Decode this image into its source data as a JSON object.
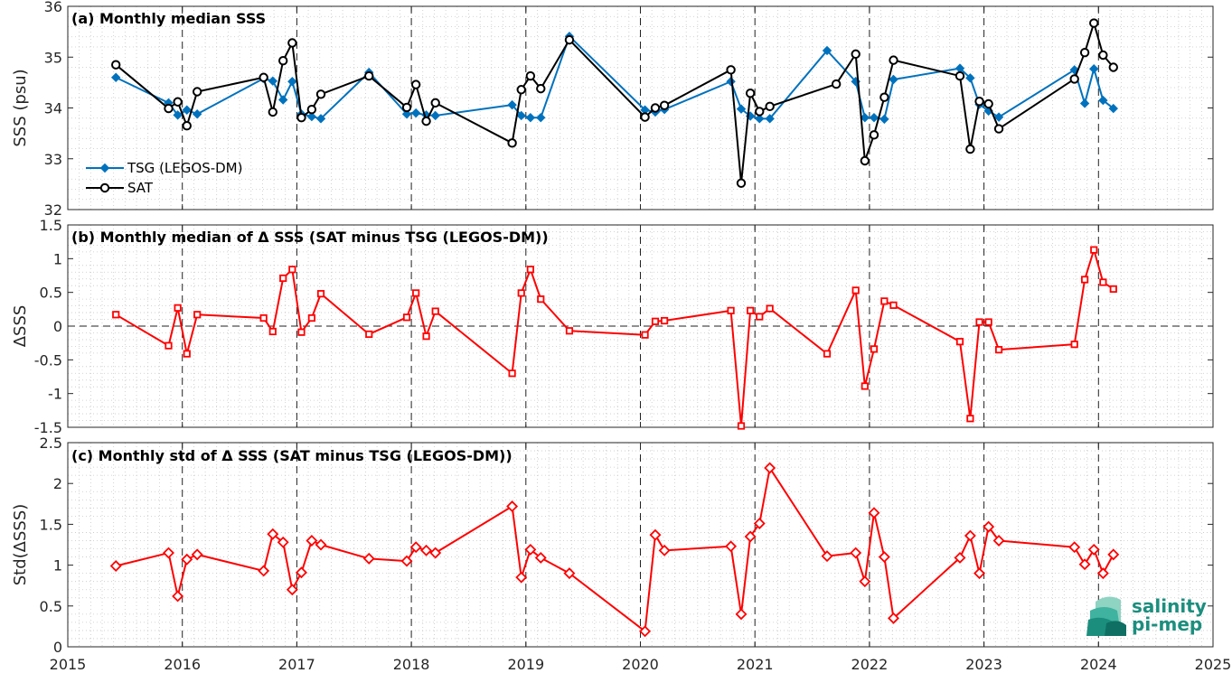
{
  "chart_data": [
    {
      "type": "line",
      "title": "(a) Monthly median SSS",
      "xlabel": "",
      "ylabel": "SSS (psu)",
      "xlim": [
        2015,
        2025
      ],
      "ylim": [
        32,
        36
      ],
      "yticks": [
        "32",
        "33",
        "34",
        "35",
        "36"
      ],
      "legend_position": "lower-left",
      "grid": "minor dotted",
      "series": [
        {
          "name": "TSG (LEGOS-DM)",
          "color": "#0072BD",
          "marker": "diamond",
          "x": [
            2015.42,
            2015.88,
            2015.96,
            2016.04,
            2016.13,
            2016.71,
            2016.79,
            2016.88,
            2016.96,
            2017.04,
            2017.13,
            2017.21,
            2017.63,
            2017.96,
            2018.04,
            2018.13,
            2018.21,
            2018.88,
            2018.96,
            2019.04,
            2019.13,
            2019.38,
            2020.04,
            2020.13,
            2020.21,
            2020.79,
            2020.88,
            2020.96,
            2021.04,
            2021.13,
            2021.63,
            2021.88,
            2021.96,
            2022.04,
            2022.13,
            2022.21,
            2022.79,
            2022.88,
            2022.96,
            2023.04,
            2023.13,
            2023.79,
            2023.88,
            2023.96,
            2024.04,
            2024.13
          ],
          "y": [
            34.6,
            34.1,
            33.86,
            33.96,
            33.88,
            34.58,
            34.53,
            34.16,
            34.52,
            33.88,
            33.83,
            33.79,
            34.7,
            33.88,
            33.9,
            33.86,
            33.85,
            34.06,
            33.85,
            33.81,
            33.81,
            35.41,
            33.96,
            33.92,
            33.97,
            34.52,
            33.98,
            33.84,
            33.79,
            33.79,
            35.13,
            34.52,
            33.81,
            33.81,
            33.78,
            34.56,
            34.78,
            34.59,
            34.07,
            33.94,
            33.82,
            34.75,
            34.09,
            34.77,
            34.15,
            33.99
          ]
        },
        {
          "name": "SAT",
          "color": "#000000",
          "marker": "circle",
          "x": [
            2015.42,
            2015.88,
            2015.96,
            2016.04,
            2016.13,
            2016.71,
            2016.79,
            2016.88,
            2016.96,
            2017.04,
            2017.13,
            2017.21,
            2017.63,
            2017.96,
            2018.04,
            2018.13,
            2018.21,
            2018.88,
            2018.96,
            2019.04,
            2019.13,
            2019.38,
            2020.04,
            2020.13,
            2020.21,
            2020.79,
            2020.88,
            2020.96,
            2021.04,
            2021.13,
            2021.71,
            2021.88,
            2021.96,
            2022.04,
            2022.13,
            2022.21,
            2022.79,
            2022.88,
            2022.96,
            2023.04,
            2023.13,
            2023.79,
            2023.88,
            2023.96,
            2024.04,
            2024.13
          ],
          "y": [
            34.85,
            33.99,
            34.12,
            33.65,
            34.32,
            34.6,
            33.92,
            34.93,
            35.28,
            33.81,
            33.97,
            34.27,
            34.63,
            34.01,
            34.46,
            33.74,
            34.1,
            33.31,
            34.36,
            34.63,
            34.38,
            35.34,
            33.82,
            34.0,
            34.05,
            34.75,
            32.52,
            34.29,
            33.93,
            34.03,
            34.47,
            35.06,
            32.96,
            33.47,
            34.21,
            34.94,
            34.63,
            33.19,
            34.13,
            34.08,
            33.59,
            34.57,
            35.09,
            35.67,
            35.04,
            34.8
          ]
        }
      ]
    },
    {
      "type": "line",
      "title": "(b) Monthly median of Δ SSS (SAT minus TSG (LEGOS-DM))",
      "xlabel": "",
      "ylabel": "ΔSSS",
      "xlim": [
        2015,
        2025
      ],
      "ylim": [
        -1.5,
        1.5
      ],
      "yticks": [
        "-1.5",
        "-1",
        "-0.5",
        "0",
        "0.5",
        "1",
        "1.5"
      ],
      "grid": "minor dotted",
      "series": [
        {
          "color": "#FF0000",
          "marker": "square",
          "x": [
            2015.42,
            2015.88,
            2015.96,
            2016.04,
            2016.13,
            2016.71,
            2016.79,
            2016.88,
            2016.96,
            2017.04,
            2017.13,
            2017.21,
            2017.63,
            2017.96,
            2018.04,
            2018.13,
            2018.21,
            2018.88,
            2018.96,
            2019.04,
            2019.13,
            2019.38,
            2020.04,
            2020.13,
            2020.21,
            2020.79,
            2020.88,
            2020.96,
            2021.04,
            2021.13,
            2021.63,
            2021.88,
            2021.96,
            2022.04,
            2022.13,
            2022.21,
            2022.79,
            2022.88,
            2022.96,
            2023.04,
            2023.13,
            2023.79,
            2023.88,
            2023.96,
            2024.04,
            2024.13
          ],
          "y": [
            0.17,
            -0.29,
            0.27,
            -0.41,
            0.17,
            0.12,
            -0.08,
            0.71,
            0.84,
            -0.09,
            0.12,
            0.48,
            -0.12,
            0.13,
            0.49,
            -0.15,
            0.22,
            -0.7,
            0.49,
            0.84,
            0.4,
            -0.07,
            -0.13,
            0.07,
            0.08,
            0.23,
            -1.48,
            0.23,
            0.14,
            0.26,
            -0.41,
            0.53,
            -0.89,
            -0.34,
            0.37,
            0.31,
            -0.23,
            -1.37,
            0.06,
            0.06,
            -0.35,
            -0.27,
            0.69,
            1.13,
            0.65,
            0.55
          ]
        }
      ]
    },
    {
      "type": "line",
      "title": "(c) Monthly std of Δ SSS (SAT minus TSG (LEGOS-DM))",
      "xlabel": "",
      "ylabel": "Std(ΔSSS)",
      "xlim": [
        2015,
        2025
      ],
      "ylim": [
        0,
        2.5
      ],
      "xticks": [
        "2015",
        "2016",
        "2017",
        "2018",
        "2019",
        "2020",
        "2021",
        "2022",
        "2023",
        "2024",
        "2025"
      ],
      "yticks": [
        "0",
        "0.5",
        "1",
        "1.5",
        "2",
        "2.5"
      ],
      "grid": "minor dotted",
      "series": [
        {
          "color": "#FF0000",
          "marker": "diamond",
          "x": [
            2015.42,
            2015.88,
            2015.96,
            2016.04,
            2016.13,
            2016.71,
            2016.79,
            2016.88,
            2016.96,
            2017.04,
            2017.13,
            2017.21,
            2017.63,
            2017.96,
            2018.04,
            2018.13,
            2018.21,
            2018.88,
            2018.96,
            2019.04,
            2019.13,
            2019.38,
            2020.04,
            2020.13,
            2020.21,
            2020.79,
            2020.88,
            2020.96,
            2021.04,
            2021.13,
            2021.63,
            2021.88,
            2021.96,
            2022.04,
            2022.13,
            2022.21,
            2022.79,
            2022.88,
            2022.96,
            2023.04,
            2023.13,
            2023.79,
            2023.88,
            2023.96,
            2024.04,
            2024.13
          ],
          "y": [
            0.99,
            1.15,
            0.62,
            1.07,
            1.13,
            0.93,
            1.38,
            1.28,
            0.7,
            0.91,
            1.3,
            1.25,
            1.08,
            1.05,
            1.22,
            1.18,
            1.15,
            1.72,
            0.85,
            1.19,
            1.09,
            0.9,
            0.19,
            1.37,
            1.18,
            1.23,
            0.4,
            1.35,
            1.51,
            2.19,
            1.11,
            1.15,
            0.8,
            1.64,
            1.1,
            0.35,
            1.09,
            1.36,
            0.9,
            1.47,
            1.3,
            1.22,
            1.01,
            1.19,
            0.9,
            1.13
          ]
        }
      ]
    }
  ],
  "logo": {
    "line1": "salinity",
    "line2": "pi-mep",
    "color": "#1c8e7e"
  }
}
